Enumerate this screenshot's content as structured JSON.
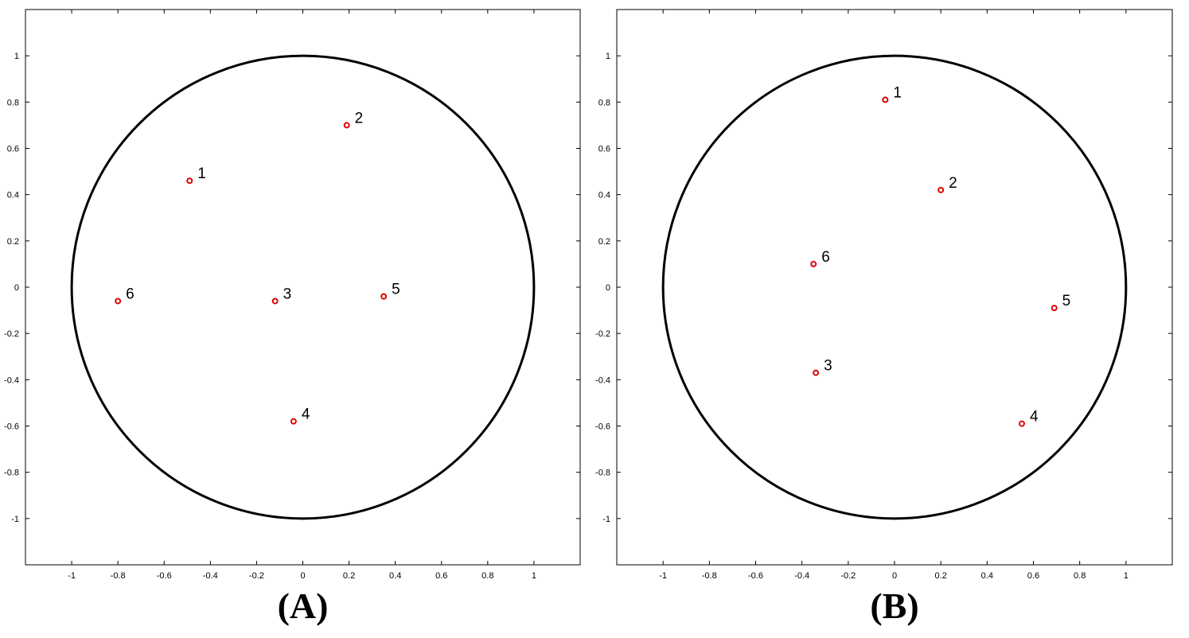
{
  "chart_data": [
    {
      "type": "scatter",
      "panel_label": "(A)",
      "xlim": [
        -1.2,
        1.2
      ],
      "ylim": [
        -1.2,
        1.2
      ],
      "xticks": [
        "-1",
        "-0.8",
        "-0.6",
        "-0.4",
        "-0.2",
        "0",
        "0.2",
        "0.4",
        "0.6",
        "0.8",
        "1"
      ],
      "yticks": [
        "1",
        "0.8",
        "0.6",
        "0.4",
        "0.2",
        "0",
        "-0.2",
        "-0.4",
        "-0.6",
        "-0.8",
        "-1"
      ],
      "unit_circle": {
        "center": [
          0,
          0
        ],
        "radius": 1
      },
      "grid": false,
      "marker_color": "#e00000",
      "points": [
        {
          "label": "1",
          "x": -0.49,
          "y": 0.46
        },
        {
          "label": "2",
          "x": 0.19,
          "y": 0.7
        },
        {
          "label": "3",
          "x": -0.12,
          "y": -0.06
        },
        {
          "label": "4",
          "x": -0.04,
          "y": -0.58
        },
        {
          "label": "5",
          "x": 0.35,
          "y": -0.04
        },
        {
          "label": "6",
          "x": -0.8,
          "y": -0.06
        }
      ]
    },
    {
      "type": "scatter",
      "panel_label": "(B)",
      "xlim": [
        -1.2,
        1.2
      ],
      "ylim": [
        -1.2,
        1.2
      ],
      "xticks": [
        "-1",
        "-0.8",
        "-0.6",
        "-0.4",
        "-0.2",
        "0",
        "0.2",
        "0.4",
        "0.6",
        "0.8",
        "1"
      ],
      "yticks": [
        "1",
        "0.8",
        "0.6",
        "0.4",
        "0.2",
        "0",
        "-0.2",
        "-0.4",
        "-0.6",
        "-0.8",
        "-1"
      ],
      "unit_circle": {
        "center": [
          0,
          0
        ],
        "radius": 1
      },
      "grid": false,
      "marker_color": "#e00000",
      "points": [
        {
          "label": "1",
          "x": -0.04,
          "y": 0.81
        },
        {
          "label": "2",
          "x": 0.2,
          "y": 0.42
        },
        {
          "label": "3",
          "x": -0.34,
          "y": -0.37
        },
        {
          "label": "4",
          "x": 0.55,
          "y": -0.59
        },
        {
          "label": "5",
          "x": 0.69,
          "y": -0.09
        },
        {
          "label": "6",
          "x": -0.35,
          "y": 0.1
        }
      ]
    }
  ]
}
